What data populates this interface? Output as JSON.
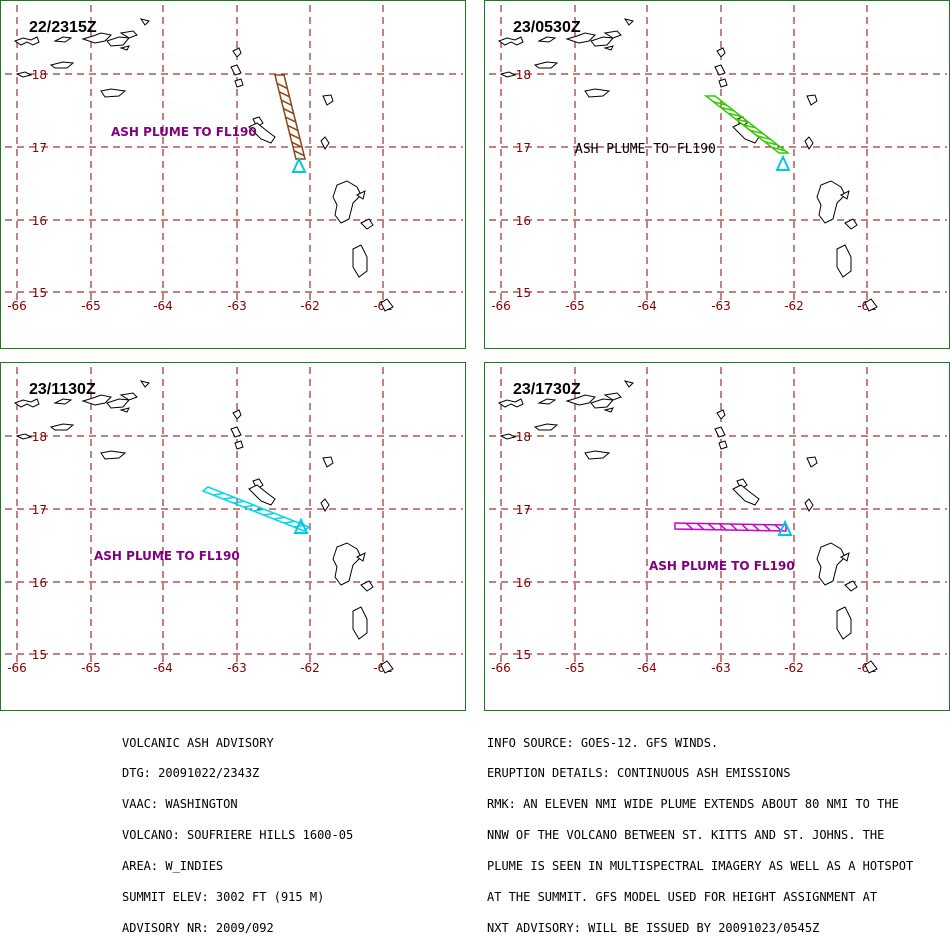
{
  "panels": [
    {
      "time": "22/2315Z",
      "label": "ASH PLUME TO FL190",
      "label_color": "#800080",
      "label_mono": false,
      "plume_color": "#8b4513"
    },
    {
      "time": "23/0530Z",
      "label": "ASH PLUME TO FL190",
      "label_color": "#000000",
      "label_mono": true,
      "plume_color": "#33cc00"
    },
    {
      "time": "23/1130Z",
      "label": "ASH PLUME TO FL190",
      "label_color": "#800080",
      "label_mono": false,
      "plume_color": "#00d8e8"
    },
    {
      "time": "23/1730Z",
      "label": "ASH PLUME TO FL190",
      "label_color": "#800080",
      "label_mono": false,
      "plume_color": "#cc00cc"
    }
  ],
  "map": {
    "lon_labels": [
      "-66",
      "-65",
      "-64",
      "-63",
      "-62",
      "-61"
    ],
    "lat_labels": [
      "18",
      "17",
      "16",
      "15"
    ],
    "grid_color": "#8b0000",
    "coast_color": "#000000",
    "volcano_color": "#00c8e0"
  },
  "advisory_left": [
    "VOLCANIC ASH ADVISORY",
    "DTG: 20091022/2343Z",
    "VAAC: WASHINGTON",
    "VOLCANO: SOUFRIERE HILLS 1600-05",
    "AREA: W_INDIES",
    "SUMMIT ELEV: 3002 FT (915 M)",
    "ADVISORY NR: 2009/092"
  ],
  "advisory_right": [
    "INFO SOURCE: GOES-12. GFS WINDS.",
    "ERUPTION DETAILS: CONTINUOUS ASH EMISSIONS",
    "RMK: AN ELEVEN NMI WIDE PLUME EXTENDS ABOUT 80 NMI TO THE",
    "NNW OF THE VOLCANO BETWEEN ST. KITTS AND ST. JOHNS. THE",
    "PLUME IS SEEN IN MULTISPECTRAL IMAGERY AS WELL AS A HOTSPOT",
    "AT THE SUMMIT. GFS MODEL USED FOR HEIGHT ASSIGNMENT AT",
    "NXT ADVISORY: WILL BE ISSUED BY 20091023/0545Z"
  ]
}
